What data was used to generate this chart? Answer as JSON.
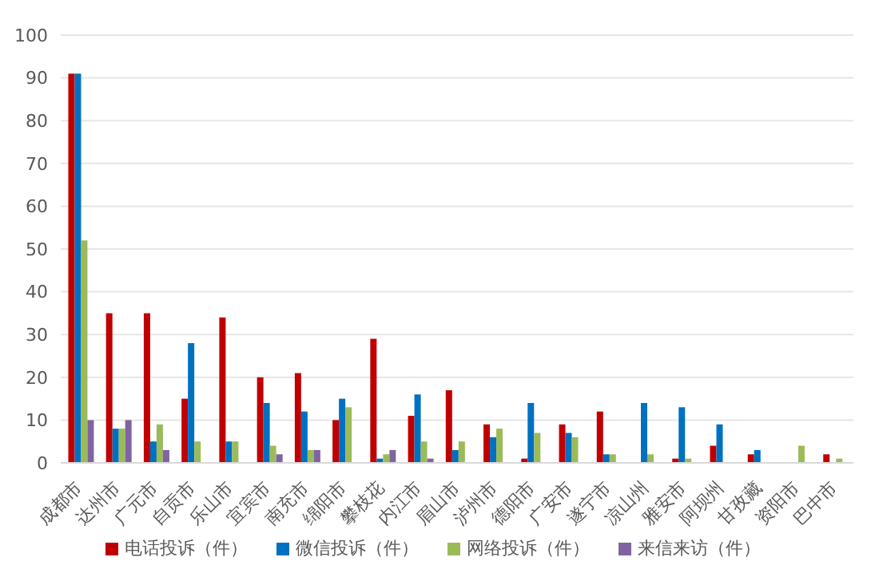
{
  "chart_data": {
    "type": "bar",
    "categories": [
      "成都市",
      "达州市",
      "广元市",
      "自贡市",
      "乐山市",
      "宜宾市",
      "南充市",
      "绵阳市",
      "攀枝花",
      "内江市",
      "眉山市",
      "泸州市",
      "德阳市",
      "广安市",
      "遂宁市",
      "凉山州",
      "雅安市",
      "阿坝州",
      "甘孜藏",
      "资阳市",
      "巴中市"
    ],
    "series": [
      {
        "name": "电话投诉（件）",
        "color": "#c00000",
        "values": [
          91,
          35,
          35,
          15,
          34,
          20,
          21,
          10,
          29,
          11,
          17,
          9,
          1,
          9,
          12,
          0,
          1,
          4,
          2,
          0,
          2
        ]
      },
      {
        "name": "微信投诉（件）",
        "color": "#0070c0",
        "values": [
          91,
          8,
          5,
          28,
          5,
          14,
          12,
          15,
          1,
          16,
          3,
          6,
          14,
          7,
          2,
          14,
          13,
          9,
          3,
          0,
          0
        ]
      },
      {
        "name": "网络投诉（件）",
        "color": "#9bbb59",
        "values": [
          52,
          8,
          9,
          5,
          5,
          4,
          3,
          13,
          2,
          5,
          5,
          8,
          7,
          6,
          2,
          2,
          1,
          0,
          0,
          4,
          1
        ]
      },
      {
        "name": "来信来访（件）",
        "color": "#8064a2",
        "values": [
          10,
          10,
          3,
          0,
          0,
          2,
          3,
          0,
          3,
          1,
          0,
          0,
          0,
          0,
          0,
          0,
          0,
          0,
          0,
          0,
          0
        ]
      }
    ],
    "ylim": [
      0,
      100
    ],
    "yticks": [
      0,
      10,
      20,
      30,
      40,
      50,
      60,
      70,
      80,
      90,
      100
    ],
    "grid": "y",
    "legend": "bottom"
  }
}
